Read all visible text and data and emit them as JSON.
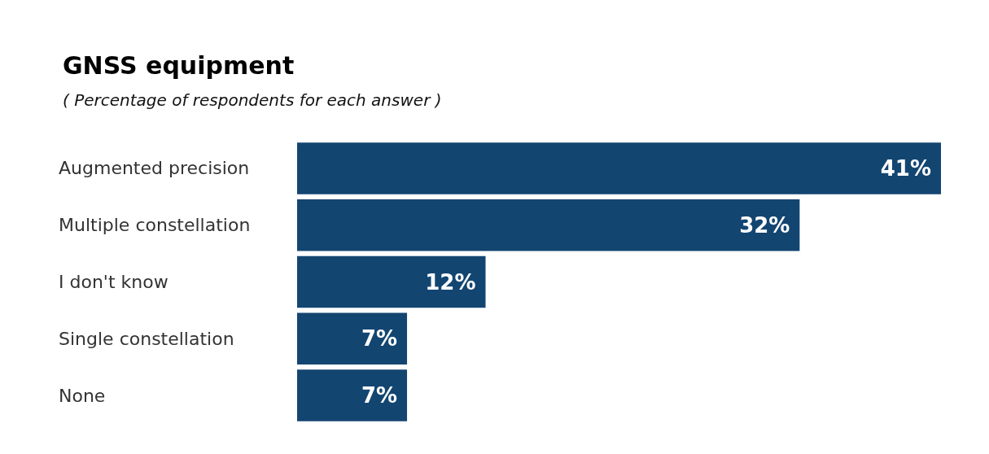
{
  "chart_data": {
    "type": "bar",
    "orientation": "horizontal",
    "title": "GNSS equipment",
    "subtitle": "( Percentage of respondents for each answer )",
    "categories": [
      "Augmented precision",
      "Multiple constellation",
      "I don't know",
      "Single constellation",
      "None"
    ],
    "values": [
      41,
      32,
      12,
      7,
      7
    ],
    "value_labels": [
      "41%",
      "32%",
      "12%",
      "7%",
      "7%"
    ],
    "color": "#134571"
  }
}
